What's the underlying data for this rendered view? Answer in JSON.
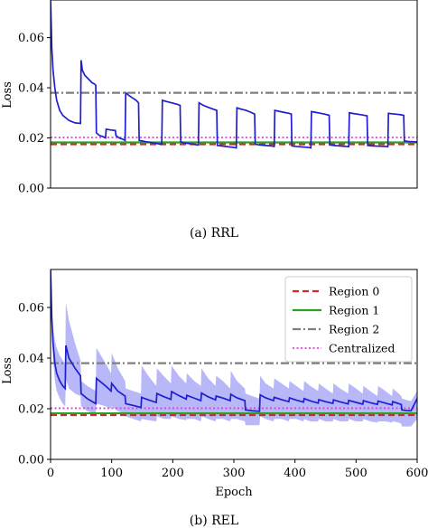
{
  "chart_data": [
    {
      "type": "line",
      "caption": "(a) RRL",
      "xlabel": "",
      "ylabel": "Loss",
      "xlim": [
        0,
        600
      ],
      "ylim": [
        0.0,
        0.075
      ],
      "yticks": [
        0.0,
        0.02,
        0.04,
        0.06
      ],
      "ytick_labels": [
        "0.00",
        "0.02",
        "0.04",
        "0.06"
      ],
      "xticks_shown": false,
      "grid": false,
      "legend": false,
      "baselines": [
        {
          "key": "region0",
          "y": 0.0175,
          "color": "#d62728",
          "dash": "dashed"
        },
        {
          "key": "region1",
          "y": 0.0182,
          "color": "#2ca02c",
          "dash": "solid"
        },
        {
          "key": "region2",
          "y": 0.038,
          "color": "#7f7f7f",
          "dash": "dashdot"
        },
        {
          "key": "centralized",
          "y": 0.0202,
          "color": "#e040e0",
          "dash": "dotted"
        }
      ],
      "series": [
        {
          "key": "rrl",
          "color": "#1f1fcf",
          "segments": [
            {
              "x": [
                0,
                1,
                2,
                4,
                7,
                10,
                15,
                20,
                25,
                30,
                40,
                49
              ],
              "y": [
                0.075,
                0.066,
                0.056,
                0.047,
                0.04,
                0.035,
                0.031,
                0.029,
                0.028,
                0.027,
                0.026,
                0.0258
              ]
            },
            {
              "x": [
                49,
                50,
                52,
                56,
                60,
                64,
                68,
                72,
                74
              ],
              "y": [
                0.0258,
                0.051,
                0.047,
                0.045,
                0.044,
                0.043,
                0.042,
                0.0415,
                0.041
              ]
            },
            {
              "x": [
                74,
                75,
                80,
                86,
                90
              ],
              "y": [
                0.041,
                0.022,
                0.021,
                0.0205,
                0.02
              ]
            },
            {
              "x": [
                90,
                91,
                98,
                104,
                106
              ],
              "y": [
                0.02,
                0.0235,
                0.0232,
                0.023,
                0.023
              ]
            },
            {
              "x": [
                106,
                107,
                112,
                118,
                122
              ],
              "y": [
                0.023,
                0.021,
                0.02,
                0.0195,
                0.019
              ]
            },
            {
              "x": [
                122,
                123,
                128,
                134,
                140,
                144
              ],
              "y": [
                0.019,
                0.038,
                0.037,
                0.036,
                0.035,
                0.034
              ]
            },
            {
              "x": [
                144,
                145,
                150,
                156,
                162,
                168,
                174,
                180,
                182
              ],
              "y": [
                0.034,
                0.019,
                0.0188,
                0.0185,
                0.0183,
                0.018,
                0.0178,
                0.0175,
                0.0175
              ]
            },
            {
              "x": [
                182,
                183,
                190,
                198,
                206,
                212
              ],
              "y": [
                0.0175,
                0.035,
                0.0345,
                0.034,
                0.0335,
                0.033
              ]
            },
            {
              "x": [
                212,
                213,
                218,
                226,
                234,
                238,
                242
              ],
              "y": [
                0.033,
                0.0185,
                0.018,
                0.0178,
                0.0175,
                0.0173,
                0.0172
              ]
            },
            {
              "x": [
                242,
                243,
                250,
                258,
                266,
                272
              ],
              "y": [
                0.0172,
                0.034,
                0.033,
                0.0322,
                0.0315,
                0.031
              ]
            },
            {
              "x": [
                272,
                273,
                280,
                290,
                300,
                304
              ],
              "y": [
                0.031,
                0.017,
                0.0168,
                0.0165,
                0.0162,
                0.016
              ]
            },
            {
              "x": [
                304,
                305,
                312,
                320,
                328,
                334
              ],
              "y": [
                0.016,
                0.032,
                0.0315,
                0.031,
                0.0302,
                0.0295
              ]
            },
            {
              "x": [
                334,
                335,
                342,
                352,
                362,
                366
              ],
              "y": [
                0.0295,
                0.0175,
                0.0172,
                0.017,
                0.0168,
                0.0166
              ]
            },
            {
              "x": [
                366,
                367,
                374,
                382,
                390,
                394
              ],
              "y": [
                0.0166,
                0.031,
                0.0306,
                0.0302,
                0.0298,
                0.0295
              ]
            },
            {
              "x": [
                394,
                395,
                402,
                412,
                422,
                426
              ],
              "y": [
                0.0295,
                0.0168,
                0.0166,
                0.0164,
                0.0162,
                0.016
              ]
            },
            {
              "x": [
                426,
                427,
                434,
                442,
                450,
                456
              ],
              "y": [
                0.016,
                0.0305,
                0.0302,
                0.0298,
                0.0294,
                0.029
              ]
            },
            {
              "x": [
                456,
                457,
                464,
                474,
                484,
                488
              ],
              "y": [
                0.029,
                0.0172,
                0.017,
                0.0168,
                0.0166,
                0.0165
              ]
            },
            {
              "x": [
                488,
                489,
                496,
                504,
                512,
                518
              ],
              "y": [
                0.0165,
                0.03,
                0.0297,
                0.0294,
                0.0291,
                0.0288
              ]
            },
            {
              "x": [
                518,
                519,
                528,
                538,
                548,
                552
              ],
              "y": [
                0.0288,
                0.017,
                0.0168,
                0.0167,
                0.0166,
                0.0165
              ]
            },
            {
              "x": [
                552,
                553,
                560,
                568,
                574,
                578
              ],
              "y": [
                0.0165,
                0.0298,
                0.0296,
                0.0294,
                0.0292,
                0.029
              ]
            },
            {
              "x": [
                578,
                579,
                586,
                594,
                600
              ],
              "y": [
                0.029,
                0.0188,
                0.0186,
                0.0185,
                0.0184
              ]
            }
          ]
        }
      ]
    },
    {
      "type": "line",
      "caption": "(b) REL",
      "xlabel": "Epoch",
      "ylabel": "Loss",
      "xlim": [
        0,
        600
      ],
      "ylim": [
        0.0,
        0.075
      ],
      "xticks": [
        0,
        100,
        200,
        300,
        400,
        500,
        600
      ],
      "xtick_labels": [
        "0",
        "100",
        "200",
        "300",
        "400",
        "500",
        "600"
      ],
      "yticks": [
        0.0,
        0.02,
        0.04,
        0.06
      ],
      "ytick_labels": [
        "0.00",
        "0.02",
        "0.04",
        "0.06"
      ],
      "grid": false,
      "legend": {
        "placement": "upper-right",
        "entries": [
          {
            "label": "Region 0",
            "color": "#d62728",
            "dash": "dashed"
          },
          {
            "label": "Region 1",
            "color": "#2ca02c",
            "dash": "solid"
          },
          {
            "label": "Region 2",
            "color": "#7f7f7f",
            "dash": "dashdot"
          },
          {
            "label": "Centralized",
            "color": "#e040e0",
            "dash": "dotted"
          }
        ]
      },
      "baselines": [
        {
          "key": "region0",
          "y": 0.0175,
          "color": "#d62728",
          "dash": "dashed"
        },
        {
          "key": "region1",
          "y": 0.0182,
          "color": "#2ca02c",
          "dash": "solid"
        },
        {
          "key": "region2",
          "y": 0.038,
          "color": "#7f7f7f",
          "dash": "dashdot"
        },
        {
          "key": "centralized",
          "y": 0.0202,
          "color": "#e040e0",
          "dash": "dotted"
        }
      ],
      "series": [
        {
          "key": "rel",
          "color": "#1f1fcf",
          "band_color": "#9a9af5",
          "x": [
            0,
            1,
            2,
            4,
            7,
            10,
            15,
            20,
            24,
            25,
            30,
            40,
            49,
            50,
            60,
            74,
            75,
            90,
            99,
            100,
            110,
            122,
            123,
            135,
            148,
            149,
            160,
            173,
            174,
            185,
            197,
            198,
            210,
            222,
            223,
            235,
            246,
            247,
            258,
            270,
            271,
            282,
            294,
            295,
            305,
            318,
            319,
            330,
            342,
            343,
            352,
            365,
            366,
            378,
            390,
            391,
            402,
            414,
            415,
            425,
            438,
            439,
            450,
            462,
            463,
            474,
            487,
            488,
            500,
            511,
            512,
            523,
            535,
            536,
            548,
            559,
            560,
            570,
            574,
            575,
            582,
            590,
            600
          ],
          "y": [
            0.075,
            0.066,
            0.056,
            0.046,
            0.038,
            0.034,
            0.031,
            0.029,
            0.028,
            0.045,
            0.04,
            0.036,
            0.033,
            0.026,
            0.024,
            0.022,
            0.032,
            0.029,
            0.027,
            0.03,
            0.027,
            0.025,
            0.022,
            0.0213,
            0.0205,
            0.0245,
            0.0235,
            0.0225,
            0.026,
            0.0248,
            0.0237,
            0.0268,
            0.0252,
            0.0238,
            0.0253,
            0.0242,
            0.0232,
            0.0262,
            0.0247,
            0.0235,
            0.025,
            0.0242,
            0.0232,
            0.0257,
            0.0243,
            0.0232,
            0.0195,
            0.0192,
            0.019,
            0.0255,
            0.0243,
            0.0232,
            0.0245,
            0.0236,
            0.0228,
            0.0243,
            0.0234,
            0.0226,
            0.024,
            0.0231,
            0.0222,
            0.0236,
            0.0228,
            0.0221,
            0.0235,
            0.0227,
            0.0219,
            0.0233,
            0.0225,
            0.0218,
            0.0232,
            0.0224,
            0.0217,
            0.023,
            0.0222,
            0.0215,
            0.0228,
            0.022,
            0.0217,
            0.0195,
            0.0193,
            0.0192,
            0.024
          ],
          "upper": [
            0.075,
            0.068,
            0.06,
            0.052,
            0.047,
            0.044,
            0.041,
            0.039,
            0.038,
            0.062,
            0.055,
            0.046,
            0.039,
            0.031,
            0.029,
            0.027,
            0.044,
            0.038,
            0.034,
            0.042,
            0.036,
            0.031,
            0.028,
            0.027,
            0.026,
            0.037,
            0.033,
            0.029,
            0.036,
            0.033,
            0.03,
            0.037,
            0.033,
            0.03,
            0.034,
            0.031,
            0.029,
            0.036,
            0.032,
            0.029,
            0.033,
            0.031,
            0.028,
            0.035,
            0.031,
            0.028,
            0.026,
            0.025,
            0.024,
            0.033,
            0.03,
            0.028,
            0.032,
            0.03,
            0.028,
            0.031,
            0.029,
            0.027,
            0.031,
            0.029,
            0.027,
            0.03,
            0.028,
            0.026,
            0.03,
            0.028,
            0.026,
            0.03,
            0.028,
            0.026,
            0.029,
            0.027,
            0.025,
            0.029,
            0.027,
            0.025,
            0.028,
            0.026,
            0.025,
            0.024,
            0.0235,
            0.023,
            0.027
          ],
          "lower": [
            0.075,
            0.064,
            0.052,
            0.04,
            0.031,
            0.027,
            0.024,
            0.022,
            0.021,
            0.032,
            0.028,
            0.026,
            0.025,
            0.021,
            0.019,
            0.018,
            0.022,
            0.021,
            0.02,
            0.021,
            0.019,
            0.018,
            0.017,
            0.016,
            0.015,
            0.016,
            0.0155,
            0.015,
            0.017,
            0.016,
            0.016,
            0.017,
            0.016,
            0.0155,
            0.016,
            0.016,
            0.015,
            0.017,
            0.016,
            0.015,
            0.016,
            0.016,
            0.015,
            0.016,
            0.016,
            0.015,
            0.0135,
            0.0135,
            0.0135,
            0.017,
            0.016,
            0.015,
            0.016,
            0.016,
            0.015,
            0.016,
            0.016,
            0.015,
            0.016,
            0.015,
            0.015,
            0.016,
            0.015,
            0.015,
            0.016,
            0.015,
            0.015,
            0.016,
            0.015,
            0.015,
            0.016,
            0.015,
            0.0145,
            0.015,
            0.015,
            0.0145,
            0.015,
            0.0145,
            0.014,
            0.013,
            0.013,
            0.013,
            0.016
          ]
        }
      ]
    }
  ]
}
